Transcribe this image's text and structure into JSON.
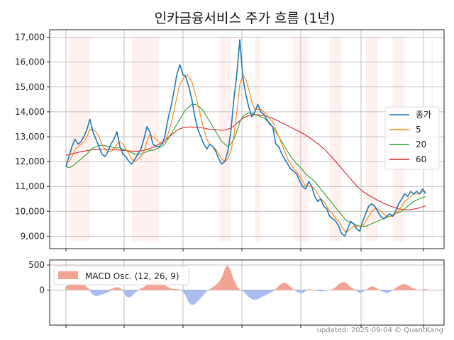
{
  "chart_data": [
    {
      "type": "line",
      "title": "인카금융서비스 주가 흐름 (1년)",
      "xlabel": "",
      "ylabel": "",
      "ylim": [
        8500,
        17300
      ],
      "yticks": [
        9000,
        10000,
        11000,
        12000,
        13000,
        14000,
        15000,
        16000,
        17000
      ],
      "ytick_labels": [
        "9,000",
        "10,000",
        "11,000",
        "12,000",
        "13,000",
        "14,000",
        "15,000",
        "16,000",
        "17,000"
      ],
      "grid": true,
      "legend_position": "right",
      "colors": {
        "close": "#1f77b4",
        "ma5": "#ff7f0e",
        "ma20": "#2ca02c",
        "ma60": "#d62728",
        "band": "#fde8e4"
      },
      "series": [
        {
          "name": "종가",
          "values": [
            11800,
            12200,
            12600,
            12900,
            12700,
            12800,
            13000,
            13300,
            13700,
            13200,
            12900,
            12600,
            12300,
            12200,
            12400,
            12700,
            12900,
            13200,
            12600,
            12300,
            12200,
            12000,
            11900,
            12100,
            12300,
            12500,
            12900,
            13400,
            13200,
            12700,
            12600,
            12600,
            12700,
            13000,
            13700,
            14200,
            14800,
            15500,
            15900,
            15500,
            15400,
            15000,
            14500,
            13800,
            13300,
            13000,
            12700,
            12500,
            12700,
            12600,
            12400,
            12100,
            11900,
            12000,
            12400,
            13200,
            14500,
            15500,
            16900,
            15400,
            14700,
            14200,
            13800,
            14000,
            14300,
            14000,
            13900,
            13700,
            13500,
            13400,
            12700,
            12600,
            12300,
            12100,
            11900,
            11700,
            11600,
            11500,
            11200,
            11000,
            10900,
            11200,
            11000,
            10600,
            10400,
            10500,
            10200,
            10100,
            9800,
            9700,
            9600,
            9400,
            9100,
            9000,
            9300,
            9600,
            9500,
            9300,
            9200,
            9600,
            9900,
            10200,
            10300,
            10200,
            10000,
            9800,
            9700,
            9800,
            9900,
            9800,
            10000,
            10300,
            10500,
            10700,
            10600,
            10800,
            10700,
            10800,
            10700,
            10900,
            10700
          ]
        },
        {
          "name": "5",
          "values": [
            11900,
            12000,
            12200,
            12500,
            12600,
            12700,
            12800,
            13000,
            13300,
            13300,
            13200,
            13000,
            12700,
            12500,
            12400,
            12400,
            12500,
            12700,
            12800,
            12700,
            12500,
            12300,
            12100,
            12000,
            12100,
            12200,
            12400,
            12800,
            13100,
            13000,
            12900,
            12800,
            12700,
            12800,
            13100,
            13500,
            14000,
            14600,
            15100,
            15300,
            15500,
            15400,
            15200,
            14800,
            14300,
            13800,
            13300,
            12900,
            12700,
            12600,
            12500,
            12300,
            12100,
            12000,
            12100,
            12400,
            13000,
            14000,
            15100,
            15500,
            15300,
            14900,
            14400,
            14100,
            14100,
            14100,
            14000,
            13900,
            13700,
            13600,
            13300,
            13000,
            12700,
            12400,
            12100,
            11900,
            11700,
            11600,
            11400,
            11200,
            11000,
            11000,
            11000,
            10900,
            10700,
            10500,
            10400,
            10200,
            10000,
            9900,
            9700,
            9600,
            9400,
            9200,
            9200,
            9300,
            9400,
            9400,
            9400,
            9400,
            9600,
            9800,
            10000,
            10100,
            10100,
            10000,
            9900,
            9800,
            9800,
            9800,
            9900,
            10000,
            10200,
            10400,
            10500,
            10600,
            10700,
            10700,
            10700,
            10800,
            10800
          ]
        },
        {
          "name": "20",
          "values": [
            11800,
            11750,
            11800,
            11900,
            12000,
            12100,
            12200,
            12300,
            12450,
            12550,
            12600,
            12650,
            12650,
            12650,
            12600,
            12600,
            12550,
            12550,
            12550,
            12500,
            12450,
            12400,
            12350,
            12300,
            12300,
            12300,
            12350,
            12400,
            12450,
            12450,
            12500,
            12550,
            12600,
            12700,
            12900,
            13100,
            13300,
            13500,
            13700,
            13900,
            14100,
            14200,
            14300,
            14300,
            14250,
            14150,
            14000,
            13800,
            13600,
            13400,
            13200,
            13000,
            12800,
            12700,
            12600,
            12700,
            12900,
            13200,
            13600,
            13800,
            13900,
            13950,
            13950,
            13900,
            13850,
            13800,
            13750,
            13650,
            13550,
            13400,
            13200,
            13000,
            12800,
            12600,
            12400,
            12200,
            12050,
            11900,
            11800,
            11650,
            11500,
            11400,
            11300,
            11200,
            11050,
            10900,
            10750,
            10600,
            10450,
            10300,
            10150,
            10000,
            9850,
            9700,
            9600,
            9550,
            9500,
            9450,
            9400,
            9400,
            9400,
            9450,
            9500,
            9550,
            9600,
            9650,
            9700,
            9750,
            9800,
            9850,
            9900,
            9950,
            10000,
            10100,
            10200,
            10300,
            10400,
            10450,
            10500,
            10550,
            10600
          ]
        },
        {
          "name": "60",
          "values": [
            12250,
            12280,
            12310,
            12340,
            12370,
            12400,
            12420,
            12440,
            12460,
            12470,
            12480,
            12490,
            12500,
            12500,
            12500,
            12490,
            12480,
            12470,
            12460,
            12450,
            12440,
            12430,
            12420,
            12420,
            12420,
            12430,
            12450,
            12480,
            12520,
            12570,
            12630,
            12700,
            12780,
            12860,
            12950,
            13050,
            13150,
            13250,
            13320,
            13360,
            13380,
            13390,
            13390,
            13380,
            13370,
            13360,
            13340,
            13320,
            13300,
            13290,
            13280,
            13270,
            13260,
            13270,
            13300,
            13350,
            13430,
            13530,
            13650,
            13740,
            13800,
            13840,
            13870,
            13880,
            13880,
            13870,
            13850,
            13820,
            13780,
            13730,
            13680,
            13620,
            13560,
            13500,
            13440,
            13380,
            13320,
            13260,
            13200,
            13130,
            13060,
            12980,
            12900,
            12810,
            12720,
            12620,
            12520,
            12400,
            12270,
            12140,
            12000,
            11860,
            11720,
            11580,
            11440,
            11300,
            11160,
            11020,
            10900,
            10800,
            10720,
            10650,
            10580,
            10510,
            10440,
            10380,
            10320,
            10270,
            10220,
            10180,
            10140,
            10100,
            10080,
            10060,
            10060,
            10070,
            10090,
            10110,
            10140,
            10180,
            10220
          ]
        }
      ],
      "highlight_bands": [
        [
          1,
          8
        ],
        [
          22,
          31
        ],
        [
          51,
          55
        ],
        [
          63,
          65
        ],
        [
          76,
          81
        ],
        [
          88,
          92
        ],
        [
          100,
          104
        ],
        [
          109,
          113
        ],
        [
          122,
          128
        ]
      ]
    },
    {
      "type": "area",
      "legend": "MACD Osc. (12, 26, 9)",
      "ylim": [
        -700,
        600
      ],
      "yticks": [
        0,
        500
      ],
      "ytick_labels": [
        "0",
        "500"
      ],
      "grid": true,
      "legend_position": "top-left",
      "colors": {
        "positive": "#f4a393",
        "negative": "#a9bdf0"
      },
      "values": [
        60,
        110,
        150,
        165,
        160,
        150,
        120,
        60,
        -20,
        -100,
        -120,
        -110,
        -90,
        -70,
        -50,
        20,
        40,
        60,
        40,
        -20,
        -120,
        -150,
        -120,
        -60,
        -10,
        30,
        60,
        110,
        150,
        180,
        190,
        170,
        140,
        100,
        60,
        30,
        20,
        20,
        10,
        -30,
        -120,
        -250,
        -300,
        -280,
        -220,
        -160,
        -90,
        -20,
        20,
        60,
        100,
        160,
        250,
        420,
        500,
        380,
        200,
        80,
        10,
        -20,
        -80,
        -140,
        -180,
        -200,
        -180,
        -150,
        -120,
        -90,
        -60,
        -30,
        20,
        80,
        130,
        150,
        120,
        60,
        10,
        -30,
        -60,
        -60,
        -20,
        20,
        10,
        -10,
        -20,
        -30,
        -20,
        -10,
        0,
        20,
        60,
        120,
        150,
        160,
        120,
        60,
        20,
        -20,
        -60,
        -40,
        0,
        40,
        80,
        60,
        20,
        -20,
        -40,
        -60,
        -40,
        0,
        40,
        80,
        110,
        120,
        100,
        60,
        30,
        10,
        -10,
        10,
        20,
        10
      ]
    }
  ],
  "footer": "updated: 2025-09-04 © QuantKang"
}
